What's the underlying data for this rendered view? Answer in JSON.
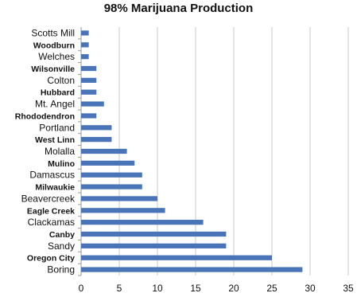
{
  "chart_data": {
    "type": "bar",
    "orientation": "horizontal",
    "title": "98% Marijuana Production",
    "xlabel": "",
    "ylabel": "",
    "xlim": [
      0,
      35
    ],
    "xticks": [
      "0",
      "5",
      "10",
      "15",
      "20",
      "25",
      "30",
      "35"
    ],
    "grid": true,
    "bar_color": "#4a74b8",
    "categories": [
      "Scotts Mill",
      "Woodburn",
      "Welches",
      "Wilsonville",
      "Colton",
      "Hubbard",
      "Mt. Angel",
      "Rhododendron",
      "Portland",
      "West Linn",
      "Molalla",
      "Mulino",
      "Damascus",
      "Milwaukie",
      "Beavercreek",
      "Eagle Creek",
      "Clackamas",
      "Canby",
      "Sandy",
      "Oregon City",
      "Boring"
    ],
    "bold_categories": [
      "Woodburn",
      "Wilsonville",
      "Hubbard",
      "Rhododendron",
      "West Linn",
      "Mulino",
      "Milwaukie",
      "Eagle Creek",
      "Canby",
      "Oregon City"
    ],
    "values": [
      1,
      1,
      1,
      2,
      2,
      2,
      3,
      2,
      4,
      4,
      6,
      7,
      8,
      8,
      10,
      11,
      16,
      19,
      19,
      25,
      29
    ]
  }
}
